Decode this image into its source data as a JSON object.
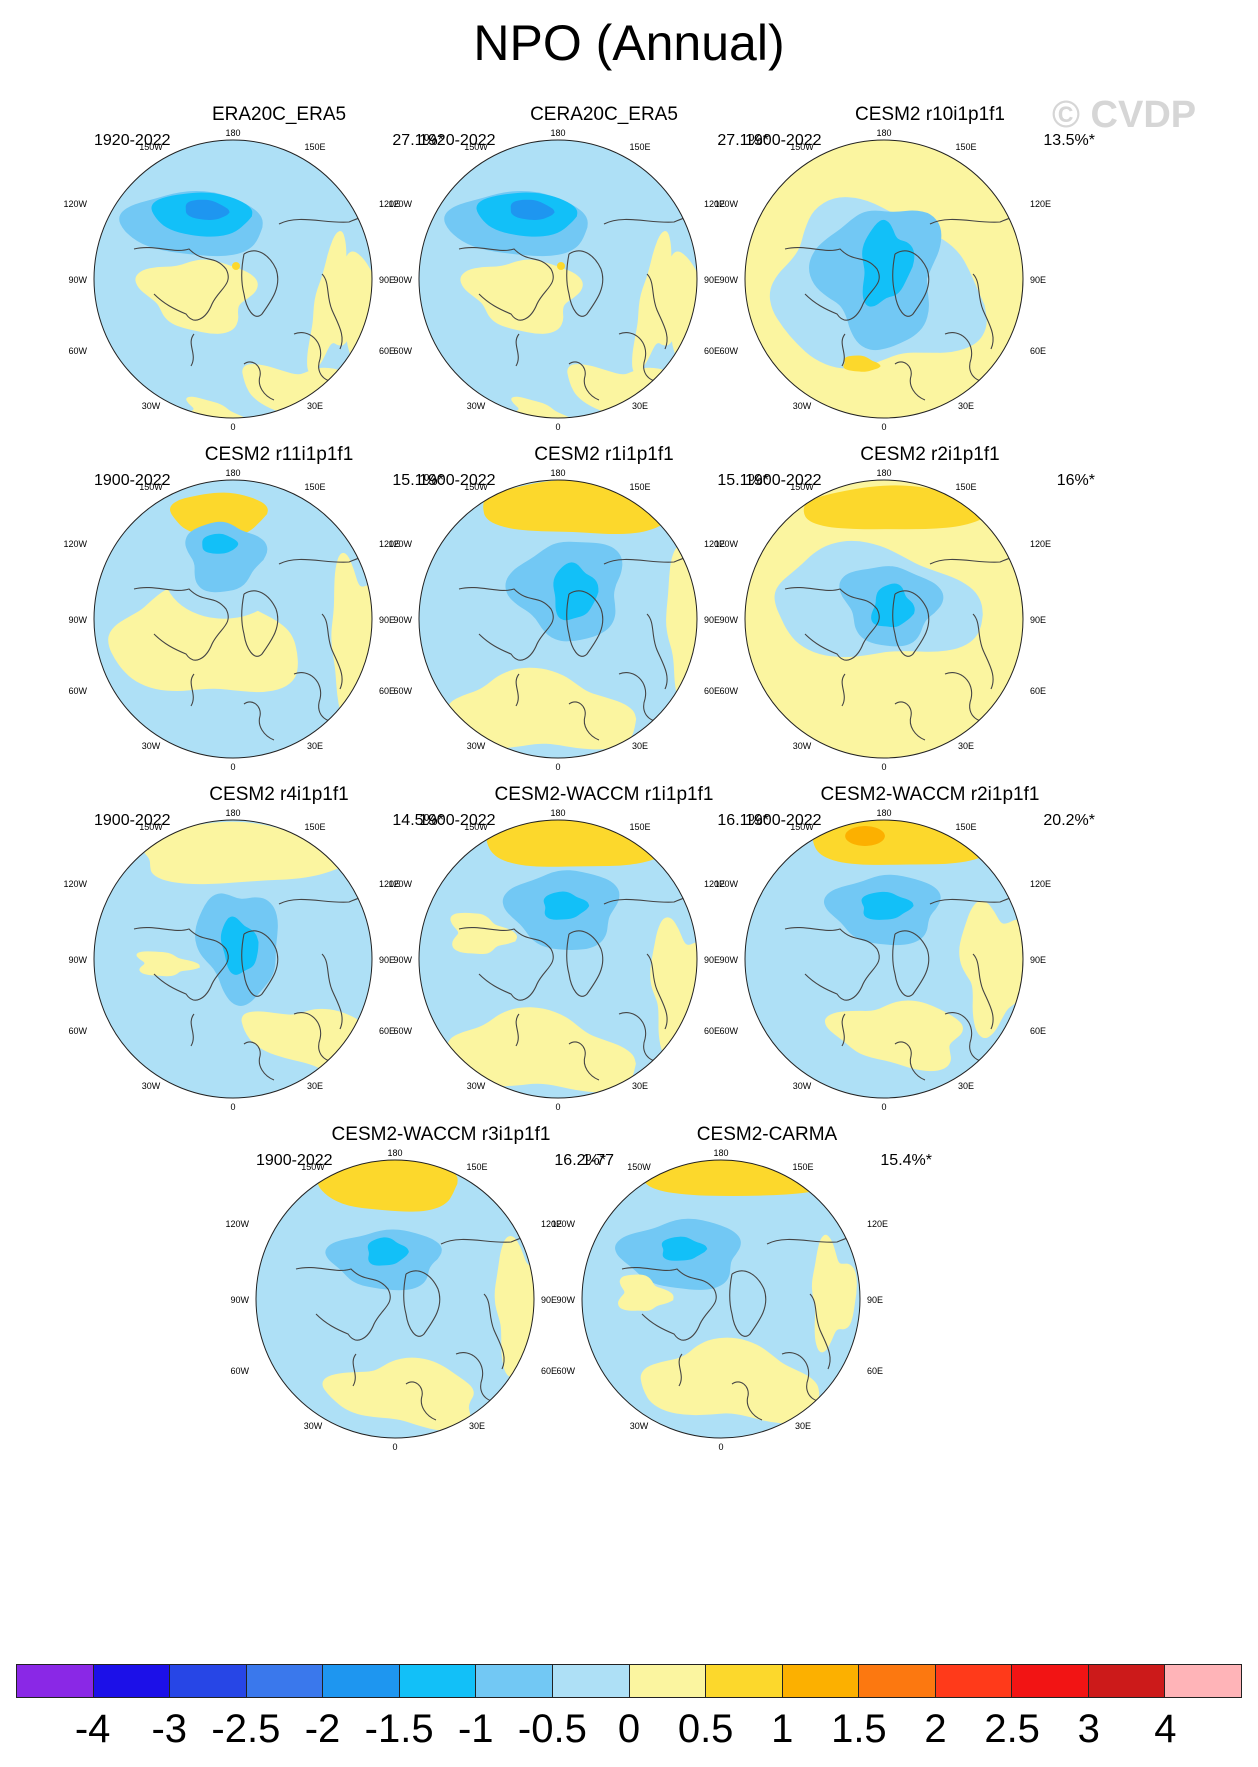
{
  "title": "NPO (Annual)",
  "watermark": "© CVDP",
  "colors": {
    "land_outline": "#444444",
    "rim": "#222222",
    "levels": [
      "#8a28e6",
      "#1c10e8",
      "#2746e6",
      "#3a78ec",
      "#1e96f0",
      "#12c0f8",
      "#72c8f4",
      "#aee0f6",
      "#fbf5a0",
      "#fcd82c",
      "#fcb000",
      "#fc7810",
      "#ff3a1a",
      "#f21414",
      "#cc1a1a",
      "#ffb4b8"
    ]
  },
  "colorbar_labels": [
    "-4",
    "-3",
    "-2.5",
    "-2",
    "-1.5",
    "-1",
    "-0.5",
    "0",
    "0.5",
    "1",
    "1.5",
    "2",
    "2.5",
    "3",
    "4"
  ],
  "lon_labels": {
    "top": "180",
    "bottom": "0",
    "upper_left": "150W",
    "upper_right": "150E",
    "mid_upper_left": "120W",
    "mid_upper_right": "120E",
    "left": "90W",
    "right": "90E",
    "mid_lower_left": "60W",
    "mid_lower_right": "60E",
    "lower_left": "30W",
    "lower_right": "30E"
  },
  "panels": [
    {
      "title": "ERA20C_ERA5",
      "period": "1920-2022",
      "percent": "27.1%*",
      "pattern": "era"
    },
    {
      "title": "CERA20C_ERA5",
      "period": "1920-2022",
      "percent": "27.1%*",
      "pattern": "era"
    },
    {
      "title": "CESM2 r10i1p1f1",
      "period": "1900-2022",
      "percent": "13.5%*",
      "pattern": "r10"
    },
    {
      "title": "CESM2 r11i1p1f1",
      "period": "1900-2022",
      "percent": "15.1%*",
      "pattern": "r11"
    },
    {
      "title": "CESM2 r1i1p1f1",
      "period": "1900-2022",
      "percent": "15.1%*",
      "pattern": "r1"
    },
    {
      "title": "CESM2 r2i1p1f1",
      "period": "1900-2022",
      "percent": "16%*",
      "pattern": "r2"
    },
    {
      "title": "CESM2 r4i1p1f1",
      "period": "1900-2022",
      "percent": "14.5%*",
      "pattern": "r4"
    },
    {
      "title": "CESM2-WACCM r1i1p1f1",
      "period": "1900-2022",
      "percent": "16.1%*",
      "pattern": "w1"
    },
    {
      "title": "CESM2-WACCM r2i1p1f1",
      "period": "1900-2022",
      "percent": "20.2%*",
      "pattern": "w2"
    },
    {
      "title": "CESM2-WACCM r3i1p1f1",
      "period": "1900-2022",
      "percent": "16.2%*",
      "pattern": "w3"
    },
    {
      "title": "CESM2-CARMA",
      "period": "1-77",
      "percent": "15.4%*",
      "pattern": "carma"
    }
  ]
}
